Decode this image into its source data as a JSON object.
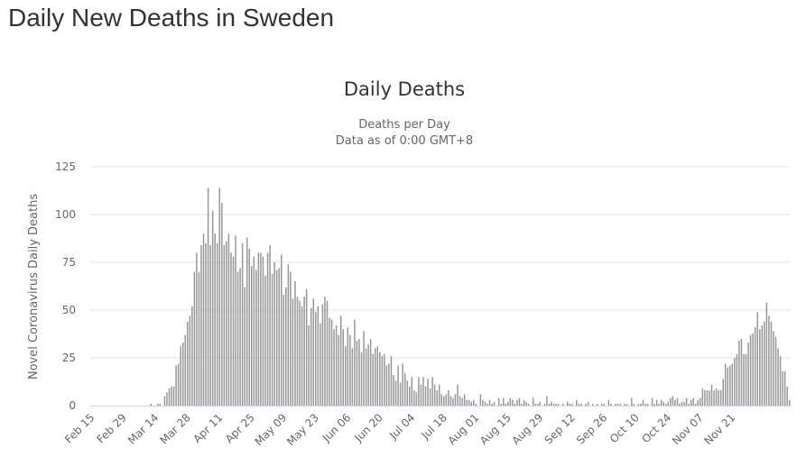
{
  "page": {
    "title": "Daily New Deaths in Sweden"
  },
  "chart_data": {
    "type": "bar",
    "title": "Daily Deaths",
    "subtitle_lines": [
      "Deaths per Day",
      "Data as of 0:00 GMT+8"
    ],
    "xlabel": "",
    "ylabel": "Novel Coronavirus Daily Deaths",
    "ylim": [
      0,
      125
    ],
    "y_ticks": [
      0,
      25,
      50,
      75,
      100,
      125
    ],
    "grid": true,
    "legend": "none",
    "start_date": "Feb 15",
    "x_tick_labels": [
      "Feb 15",
      "Feb 29",
      "Mar 14",
      "Mar 28",
      "Apr 11",
      "Apr 25",
      "May 09",
      "May 23",
      "Jun 06",
      "Jun 20",
      "Jul 04",
      "Jul 18",
      "Aug 01",
      "Aug 15",
      "Aug 29",
      "Sep 12",
      "Sep 26",
      "Oct 10",
      "Oct 24",
      "Nov 07",
      "Nov 21"
    ],
    "x_tick_interval_days": 14,
    "series": [
      {
        "name": "Daily Deaths",
        "color": "#999999",
        "values": [
          0,
          0,
          0,
          0,
          0,
          0,
          0,
          0,
          0,
          0,
          0,
          0,
          0,
          0,
          0,
          0,
          0,
          0,
          0,
          0,
          0,
          0,
          0,
          0,
          0,
          0,
          1,
          0,
          0,
          1,
          1,
          0,
          5,
          7,
          9,
          10,
          10,
          21,
          22,
          31,
          33,
          37,
          44,
          47,
          52,
          70,
          80,
          70,
          84,
          90,
          85,
          114,
          84,
          102,
          90,
          85,
          114,
          106,
          84,
          86,
          90,
          80,
          78,
          89,
          70,
          72,
          85,
          62,
          88,
          82,
          73,
          78,
          71,
          80,
          80,
          78,
          68,
          80,
          84,
          69,
          75,
          71,
          72,
          79,
          58,
          62,
          74,
          70,
          56,
          65,
          57,
          55,
          52,
          57,
          61,
          42,
          51,
          56,
          49,
          52,
          43,
          53,
          57,
          55,
          46,
          45,
          40,
          42,
          37,
          47,
          40,
          31,
          41,
          37,
          30,
          45,
          34,
          35,
          28,
          39,
          30,
          32,
          35,
          27,
          30,
          31,
          28,
          26,
          27,
          21,
          22,
          26,
          16,
          13,
          21,
          12,
          22,
          17,
          13,
          10,
          15,
          8,
          7,
          15,
          11,
          15,
          10,
          14,
          9,
          15,
          11,
          8,
          11,
          6,
          5,
          6,
          8,
          5,
          4,
          6,
          11,
          5,
          4,
          6,
          3,
          3,
          2,
          3,
          1,
          0,
          6,
          3,
          2,
          1,
          3,
          1,
          2,
          0,
          4,
          1,
          4,
          1,
          2,
          4,
          3,
          1,
          3,
          4,
          1,
          3,
          2,
          1,
          0,
          4,
          1,
          1,
          2,
          0,
          1,
          5,
          1,
          2,
          1,
          1,
          1,
          0,
          1,
          0,
          2,
          1,
          1,
          0,
          3,
          1,
          1,
          0,
          1,
          2,
          0,
          1,
          0,
          1,
          0,
          1,
          1,
          0,
          3,
          1,
          0,
          1,
          1,
          1,
          0,
          1,
          1,
          0,
          4,
          1,
          0,
          1,
          1,
          3,
          1,
          1,
          0,
          4,
          1,
          3,
          1,
          3,
          2,
          1,
          2,
          4,
          5,
          3,
          4,
          1,
          2,
          2,
          4,
          1,
          3,
          4,
          1,
          3,
          4,
          9,
          8,
          8,
          8,
          11,
          8,
          9,
          8,
          8,
          14,
          22,
          20,
          21,
          22,
          25,
          27,
          34,
          35,
          27,
          27,
          33,
          37,
          38,
          41,
          49,
          40,
          42,
          44,
          54,
          47,
          44,
          39,
          36,
          30,
          26,
          18,
          18,
          10,
          3
        ]
      }
    ]
  }
}
